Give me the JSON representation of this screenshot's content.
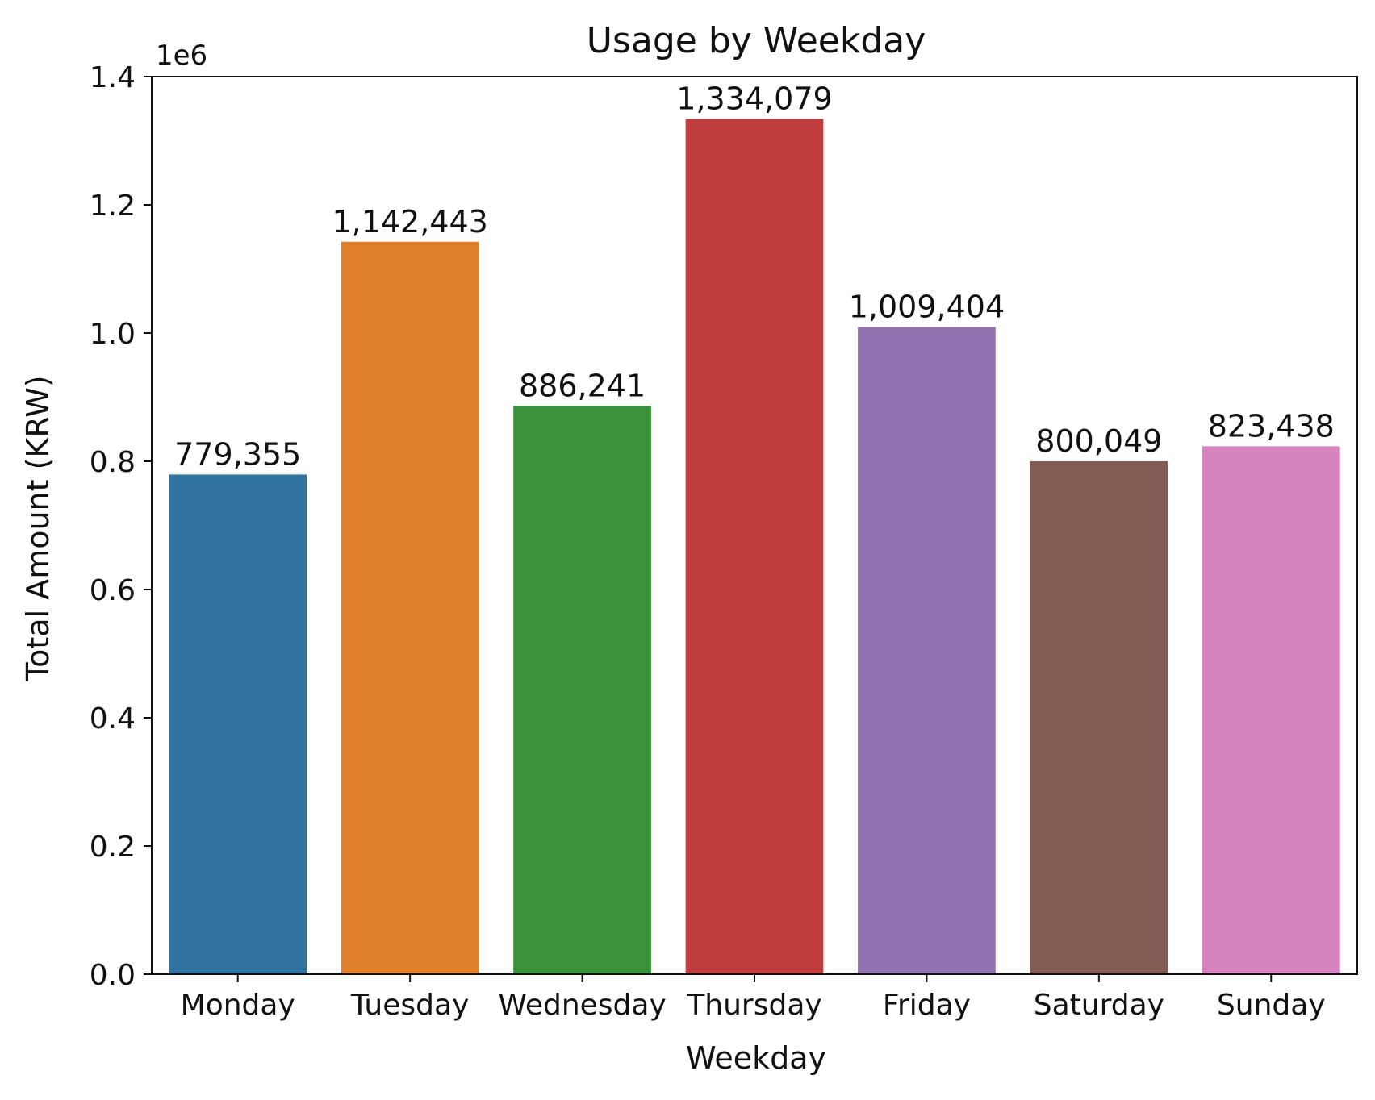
{
  "chart_data": {
    "type": "bar",
    "title": "Usage by Weekday",
    "xlabel": "Weekday",
    "ylabel": "Total Amount (KRW)",
    "y_multiplier_label": "1e6",
    "categories": [
      "Monday",
      "Tuesday",
      "Wednesday",
      "Thursday",
      "Friday",
      "Saturday",
      "Sunday"
    ],
    "values": [
      779355,
      1142443,
      886241,
      1334079,
      1009404,
      800049,
      823438
    ],
    "data_labels": [
      "779,355",
      "1,142,443",
      "886,241",
      "1,334,079",
      "1,009,404",
      "800,049",
      "823,438"
    ],
    "colors": [
      "#3274a1",
      "#e1812c",
      "#3a923a",
      "#c03d3e",
      "#9372b2",
      "#845b53",
      "#d684bd"
    ],
    "ylim": [
      0,
      1400000
    ],
    "yticks": [
      0,
      200000,
      400000,
      600000,
      800000,
      1000000,
      1200000,
      1400000
    ],
    "ytick_labels": [
      "0.0",
      "0.2",
      "0.4",
      "0.6",
      "0.8",
      "1.0",
      "1.2",
      "1.4"
    ],
    "grid": false,
    "legend": "none"
  }
}
